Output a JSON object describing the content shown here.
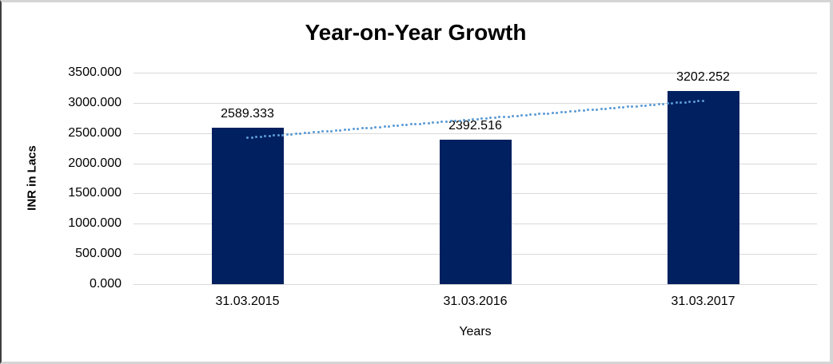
{
  "chart_data": {
    "type": "bar",
    "title": "Year-on-Year Growth",
    "xlabel": "Years",
    "ylabel": "INR in Lacs",
    "categories": [
      "31.03.2015",
      "31.03.2016",
      "31.03.2017"
    ],
    "values": [
      2589.333,
      2392.516,
      3202.252
    ],
    "value_labels": [
      "2589.333",
      "2392.516",
      "3202.252"
    ],
    "ylim": [
      0,
      3500
    ],
    "ytick_step": 500,
    "ytick_labels": [
      "0.000",
      "500.000",
      "1000.000",
      "1500.000",
      "2000.000",
      "2500.000",
      "3000.000",
      "3500.000"
    ],
    "grid": true,
    "legend_position": "none",
    "bar_color": "#002060",
    "gridline_color": "#d9d9d9",
    "trendline": {
      "type": "linear",
      "style": "dotted",
      "color": "#5B9BD5",
      "start_value": 2421.6,
      "end_value": 3034.5
    }
  }
}
